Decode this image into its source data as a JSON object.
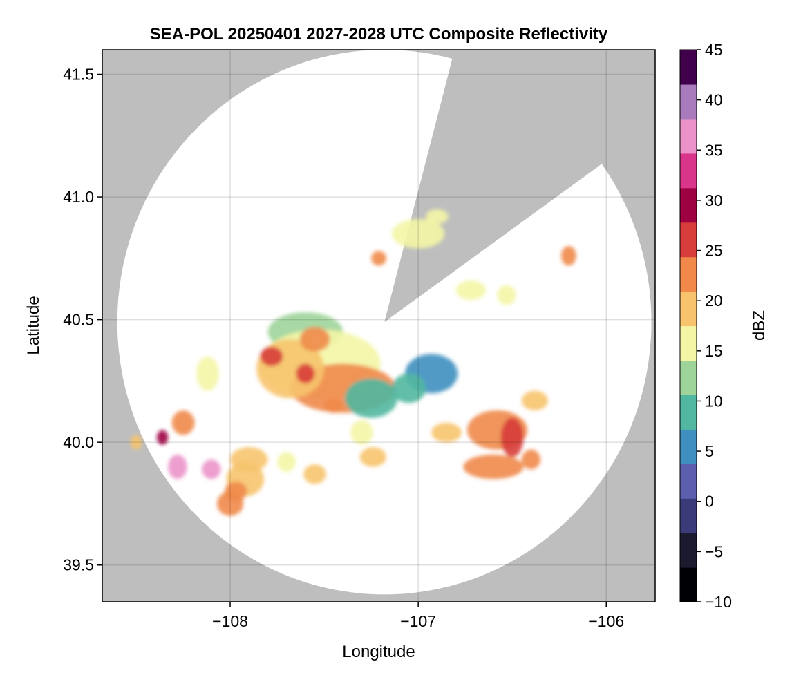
{
  "chart_data": {
    "type": "heatmap",
    "title": "SEA-POL 20250401 2027-2028 UTC Composite Reflectivity",
    "xlabel": "Longitude",
    "ylabel": "Latitude",
    "xlim": [
      -108.68,
      -105.74
    ],
    "ylim": [
      39.35,
      41.6
    ],
    "x_ticks": [
      -108,
      -107,
      -106
    ],
    "x_tick_labels": [
      "−108",
      "−107",
      "−106"
    ],
    "y_ticks": [
      39.5,
      40.0,
      40.5,
      41.0,
      41.5
    ],
    "y_tick_labels": [
      "39.5",
      "40.0",
      "40.5",
      "41.0",
      "41.5"
    ],
    "grid": true,
    "background_color": "#bebebe",
    "coverage_color": "#ffffff",
    "radar": {
      "lon": -107.18,
      "lat": 40.49,
      "range_deg_lon": 1.42,
      "range_deg_lat": 1.11
    },
    "blocked_sectors": [
      {
        "from_lon": -106.83,
        "from_lat": 41.53,
        "to_lon": -106.05,
        "to_lat": 41.12
      }
    ],
    "colorbar": {
      "label": "dBZ",
      "vmin": -10,
      "vmax": 45,
      "ticks": [
        -10,
        -5,
        0,
        5,
        10,
        15,
        20,
        25,
        30,
        35,
        40,
        45
      ],
      "tick_labels": [
        "−10",
        "−5",
        "0",
        "5",
        "10",
        "15",
        "20",
        "25",
        "30",
        "35",
        "40",
        "45"
      ],
      "colors": [
        "#000004",
        "#1c1a2e",
        "#3b3b7a",
        "#5b5fae",
        "#3f8fbf",
        "#52b7a0",
        "#9ed49a",
        "#f4f6a6",
        "#f7c46d",
        "#f0894a",
        "#d73d3a",
        "#9e0142",
        "#d9358a",
        "#eb93c9",
        "#a97bbd",
        "#40004b"
      ]
    },
    "echo_cells": [
      {
        "lon": -107.6,
        "lat": 40.45,
        "rlon": 0.2,
        "rlat": 0.08,
        "dbz": 12
      },
      {
        "lon": -107.52,
        "lat": 40.32,
        "rlon": 0.32,
        "rlat": 0.14,
        "dbz": 17
      },
      {
        "lon": -107.4,
        "lat": 40.22,
        "rlon": 0.28,
        "rlat": 0.1,
        "dbz": 21
      },
      {
        "lon": -107.68,
        "lat": 40.3,
        "rlon": 0.18,
        "rlat": 0.12,
        "dbz": 19
      },
      {
        "lon": -107.25,
        "lat": 40.18,
        "rlon": 0.14,
        "rlat": 0.08,
        "dbz": 8
      },
      {
        "lon": -106.93,
        "lat": 40.28,
        "rlon": 0.14,
        "rlat": 0.08,
        "dbz": 5
      },
      {
        "lon": -107.05,
        "lat": 40.22,
        "rlon": 0.09,
        "rlat": 0.06,
        "dbz": 8
      },
      {
        "lon": -107.55,
        "lat": 40.42,
        "rlon": 0.08,
        "rlat": 0.05,
        "dbz": 23
      },
      {
        "lon": -107.78,
        "lat": 40.35,
        "rlon": 0.06,
        "rlat": 0.04,
        "dbz": 26
      },
      {
        "lon": -107.3,
        "lat": 40.04,
        "rlon": 0.06,
        "rlat": 0.05,
        "dbz": 16
      },
      {
        "lon": -107.9,
        "lat": 39.93,
        "rlon": 0.1,
        "rlat": 0.05,
        "dbz": 18
      },
      {
        "lon": -107.92,
        "lat": 39.85,
        "rlon": 0.1,
        "rlat": 0.07,
        "dbz": 20
      },
      {
        "lon": -108.0,
        "lat": 39.75,
        "rlon": 0.07,
        "rlat": 0.05,
        "dbz": 22
      },
      {
        "lon": -107.97,
        "lat": 39.8,
        "rlon": 0.06,
        "rlat": 0.04,
        "dbz": 24
      },
      {
        "lon": -107.7,
        "lat": 39.92,
        "rlon": 0.05,
        "rlat": 0.04,
        "dbz": 17
      },
      {
        "lon": -107.55,
        "lat": 39.87,
        "rlon": 0.06,
        "rlat": 0.04,
        "dbz": 20
      },
      {
        "lon": -107.24,
        "lat": 39.94,
        "rlon": 0.07,
        "rlat": 0.04,
        "dbz": 19
      },
      {
        "lon": -108.28,
        "lat": 39.9,
        "rlon": 0.05,
        "rlat": 0.05,
        "dbz": 37
      },
      {
        "lon": -108.1,
        "lat": 39.89,
        "rlon": 0.05,
        "rlat": 0.04,
        "dbz": 38
      },
      {
        "lon": -108.36,
        "lat": 40.02,
        "rlon": 0.03,
        "rlat": 0.03,
        "dbz": 31
      },
      {
        "lon": -108.25,
        "lat": 40.08,
        "rlon": 0.06,
        "rlat": 0.05,
        "dbz": 22
      },
      {
        "lon": -108.12,
        "lat": 40.28,
        "rlon": 0.06,
        "rlat": 0.07,
        "dbz": 17
      },
      {
        "lon": -108.5,
        "lat": 40.0,
        "rlon": 0.03,
        "rlat": 0.03,
        "dbz": 20
      },
      {
        "lon": -106.58,
        "lat": 40.05,
        "rlon": 0.16,
        "rlat": 0.08,
        "dbz": 23
      },
      {
        "lon": -106.6,
        "lat": 39.9,
        "rlon": 0.16,
        "rlat": 0.05,
        "dbz": 21
      },
      {
        "lon": -106.5,
        "lat": 40.02,
        "rlon": 0.06,
        "rlat": 0.08,
        "dbz": 26
      },
      {
        "lon": -106.85,
        "lat": 40.04,
        "rlon": 0.08,
        "rlat": 0.04,
        "dbz": 19
      },
      {
        "lon": -106.4,
        "lat": 39.93,
        "rlon": 0.05,
        "rlat": 0.04,
        "dbz": 23
      },
      {
        "lon": -106.38,
        "lat": 40.17,
        "rlon": 0.07,
        "rlat": 0.04,
        "dbz": 18
      },
      {
        "lon": -106.2,
        "lat": 40.76,
        "rlon": 0.04,
        "rlat": 0.04,
        "dbz": 24
      },
      {
        "lon": -107.0,
        "lat": 40.85,
        "rlon": 0.14,
        "rlat": 0.06,
        "dbz": 16
      },
      {
        "lon": -106.9,
        "lat": 40.92,
        "rlon": 0.06,
        "rlat": 0.03,
        "dbz": 15
      },
      {
        "lon": -106.72,
        "lat": 40.62,
        "rlon": 0.08,
        "rlat": 0.04,
        "dbz": 16
      },
      {
        "lon": -106.53,
        "lat": 40.6,
        "rlon": 0.05,
        "rlat": 0.04,
        "dbz": 15
      },
      {
        "lon": -107.21,
        "lat": 40.75,
        "rlon": 0.04,
        "rlat": 0.03,
        "dbz": 21
      },
      {
        "lon": -107.6,
        "lat": 40.28,
        "rlon": 0.05,
        "rlat": 0.04,
        "dbz": 25
      },
      {
        "lon": -107.45,
        "lat": 40.15,
        "rlon": 0.05,
        "rlat": 0.03,
        "dbz": 24
      }
    ]
  }
}
